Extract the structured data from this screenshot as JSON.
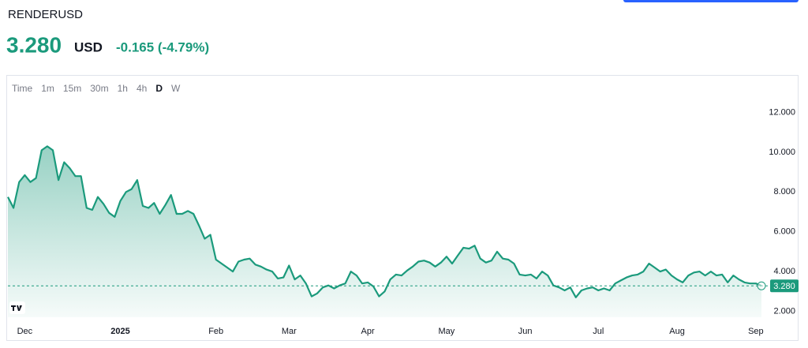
{
  "header": {
    "symbol": "RENDERUSD",
    "price": "3.280",
    "currency": "USD",
    "change": "-0.165 (-4.79%)"
  },
  "timeframes": {
    "items": [
      "Time",
      "1m",
      "15m",
      "30m",
      "1h",
      "4h",
      "D",
      "W"
    ],
    "active": 6
  },
  "chart_data": {
    "type": "area",
    "color": "#1b9a7c",
    "categories": [
      null,
      null,
      null,
      "Dec",
      null,
      null,
      null,
      null,
      null,
      null,
      null,
      null,
      null,
      null,
      null,
      null,
      null,
      null,
      null,
      null,
      "2025",
      null,
      null,
      null,
      null,
      null,
      null,
      null,
      null,
      null,
      null,
      null,
      null,
      null,
      null,
      null,
      null,
      "Feb",
      null,
      null,
      null,
      null,
      null,
      null,
      null,
      null,
      null,
      null,
      null,
      null,
      "Mar",
      null,
      null,
      null,
      null,
      null,
      null,
      null,
      null,
      null,
      null,
      null,
      null,
      null,
      "Apr",
      null,
      null,
      null,
      null,
      null,
      null,
      null,
      null,
      null,
      null,
      null,
      null,
      null,
      "May",
      null,
      null,
      null,
      null,
      null,
      null,
      null,
      null,
      null,
      null,
      null,
      null,
      null,
      "Jun",
      null,
      null,
      null,
      null,
      null,
      null,
      null,
      null,
      null,
      null,
      null,
      null,
      "Jul",
      null,
      null,
      null,
      null,
      null,
      null,
      null,
      null,
      null,
      null,
      null,
      null,
      null,
      "Aug",
      null,
      null,
      null,
      null,
      null,
      null,
      null,
      null,
      null,
      null,
      null,
      null,
      null,
      "Sep",
      null
    ],
    "values": [
      7.75,
      7.2,
      8.5,
      8.85,
      8.5,
      8.7,
      10.1,
      10.3,
      10.1,
      8.6,
      9.5,
      9.2,
      8.8,
      8.8,
      7.2,
      7.1,
      7.75,
      7.4,
      6.95,
      6.75,
      7.55,
      8.0,
      8.15,
      8.6,
      7.3,
      7.2,
      7.45,
      6.9,
      7.35,
      7.85,
      6.9,
      6.9,
      7.05,
      6.9,
      6.3,
      5.65,
      5.85,
      4.6,
      4.4,
      4.2,
      4.0,
      4.5,
      4.6,
      4.65,
      4.35,
      4.25,
      4.1,
      4.0,
      3.65,
      3.7,
      4.3,
      3.6,
      3.8,
      3.4,
      2.75,
      2.9,
      3.2,
      3.3,
      3.15,
      3.3,
      3.4,
      4.0,
      3.8,
      3.4,
      3.45,
      3.25,
      2.75,
      3.0,
      3.6,
      3.85,
      3.8,
      4.05,
      4.25,
      4.5,
      4.55,
      4.45,
      4.25,
      4.45,
      4.75,
      4.4,
      4.8,
      5.2,
      5.15,
      5.3,
      4.65,
      4.45,
      4.55,
      5.0,
      4.65,
      4.6,
      4.4,
      3.85,
      3.8,
      3.85,
      3.65,
      4.0,
      3.8,
      3.3,
      3.2,
      3.05,
      3.2,
      2.7,
      3.05,
      3.15,
      3.2,
      3.05,
      3.15,
      3.05,
      3.4,
      3.55,
      3.7,
      3.8,
      3.85,
      4.0,
      4.4,
      4.2,
      4.0,
      4.1,
      3.8,
      3.6,
      3.45,
      3.8,
      3.95,
      4.0,
      3.8,
      4.0,
      3.8,
      3.85,
      3.45,
      3.8,
      3.6,
      3.45,
      3.4,
      3.4,
      3.28
    ],
    "ylim": [
      1.7,
      12.5
    ],
    "yticks": [
      {
        "value": 2,
        "label": "2.000"
      },
      {
        "value": 4,
        "label": "4.000"
      },
      {
        "value": 6,
        "label": "6.000"
      },
      {
        "value": 8,
        "label": "8.000"
      },
      {
        "value": 10,
        "label": "10.000"
      },
      {
        "value": 12,
        "label": "12.000"
      }
    ]
  }
}
